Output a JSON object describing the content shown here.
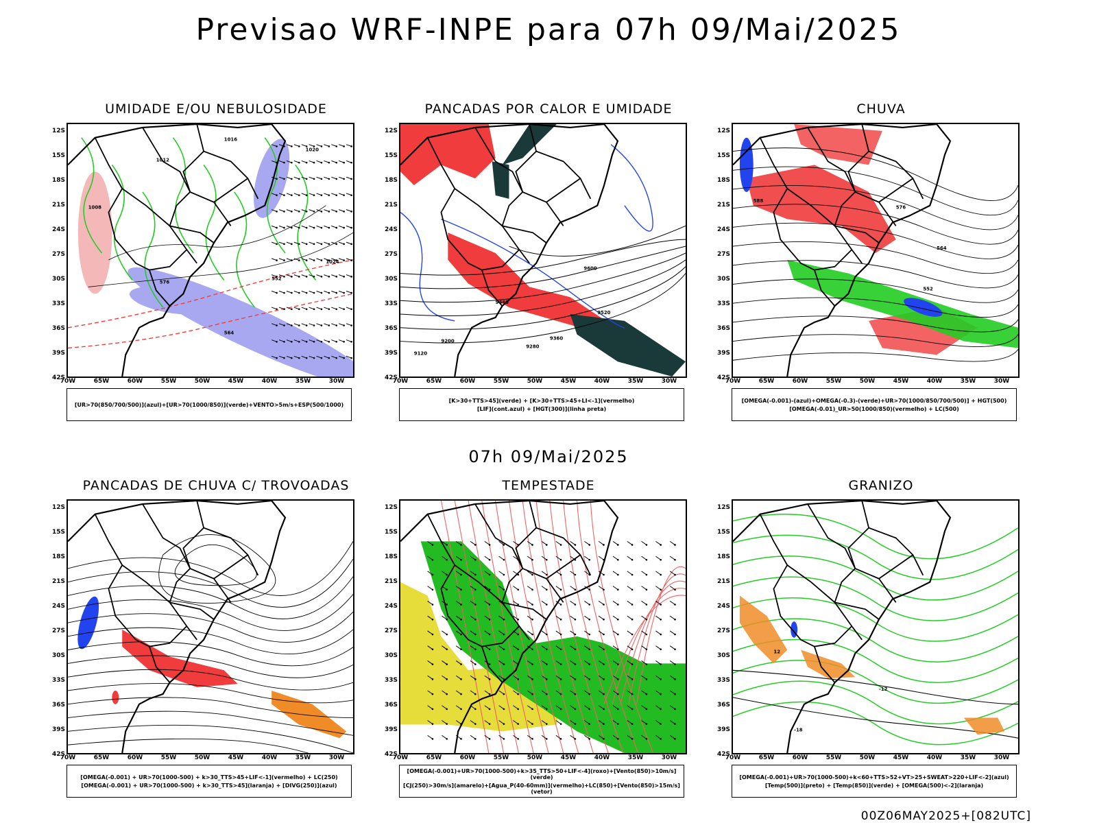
{
  "header": {
    "title": "Previsao WRF-INPE  para 07h 09/Mai/2025"
  },
  "mid_date": "07h 09/Mai/2025",
  "footer_run": "00Z06MAY2025+[082UTC]",
  "axes": {
    "lat_ticks": [
      "12S",
      "15S",
      "18S",
      "21S",
      "24S",
      "27S",
      "30S",
      "33S",
      "36S",
      "39S",
      "42S"
    ],
    "lon_ticks": [
      "70W",
      "65W",
      "60W",
      "55W",
      "50W",
      "45W",
      "40W",
      "35W",
      "30W"
    ]
  },
  "colors": {
    "green": "#22cc22",
    "red": "#f03c3c",
    "blue": "#2244ee",
    "lavender": "#a8a8f0",
    "darkteal": "#1a3a3a",
    "yellow": "#e6dc3a",
    "orange": "#f08c28",
    "black": "#000000"
  },
  "panels": [
    {
      "id": "umidade",
      "title": "UMIDADE E/OU NEBULOSIDADE",
      "legend": [
        "[UR>70(850/700/500)](azul)+[UR>70(1000/850)](verde)+VENTO>5m/s+ESP(500/1000)"
      ],
      "contour_labels": [
        "1012",
        "1016",
        "1020",
        "1024",
        "1008",
        "576",
        "564",
        "552"
      ]
    },
    {
      "id": "pancadas_calor",
      "title": "PANCADAS POR CALOR E UMIDADE",
      "legend": [
        "[K>30+TTS>45](verde) + [K>30+TTS>45+LI<-1](vermelho)",
        "[LIF](cont.azul) + [HGT(300)](linha preta)"
      ],
      "contour_labels": [
        "9600",
        "9520",
        "9440",
        "9360",
        "9280",
        "9200",
        "9120"
      ]
    },
    {
      "id": "chuva",
      "title": "CHUVA",
      "legend": [
        "[OMEGA(-0.001)-(azul)+OMEGA(-0.3)-(verde)+UR>70(1000/850/700/500)] + HGT(500)",
        "[OMEGA(-0.01)_UR>50(1000/850)(vermelho) + LC(500)"
      ],
      "contour_labels": [
        "588",
        "576",
        "564",
        "552"
      ]
    },
    {
      "id": "trovoadas",
      "title": "PANCADAS DE CHUVA C/ TROVOADAS",
      "legend": [
        "[OMEGA(-0.001) + UR>70(1000-500) + k>30_TTS>45+LIF<-1](vermelho) + LC(250)",
        "[OMEGA(-0.001) + UR>70(1000-500) + k>30_TTS>45](laranja) + [DIVG(250)](azul)"
      ],
      "contour_labels": []
    },
    {
      "id": "tempestade",
      "title": "TEMPESTADE",
      "legend": [
        "[OMEGA(-0.001)+UR>70(1000-500)+k>35_TTS>50+LIF<-4](roxo)+[Vento(850)>10m/s](verde)",
        "[CJ(250)>30m/s](amarelo)+[Agua_P(40-60mm)](vermelho)+LC(850)+[Vento(850)>15m/s](vetor)"
      ],
      "contour_labels": []
    },
    {
      "id": "granizo",
      "title": "GRANIZO",
      "legend": [
        "[OMEGA(-0.001)+UR>70(1000-500)+k<60+TTS>52+VT>25+SWEAT>220+LIF<-2](azul)",
        "[Temp(500)](preto) + [Temp(850)](verde) + [OMEGA(500)<-2](laranja)"
      ],
      "contour_labels": [
        "12",
        "-12",
        "-18"
      ]
    }
  ]
}
